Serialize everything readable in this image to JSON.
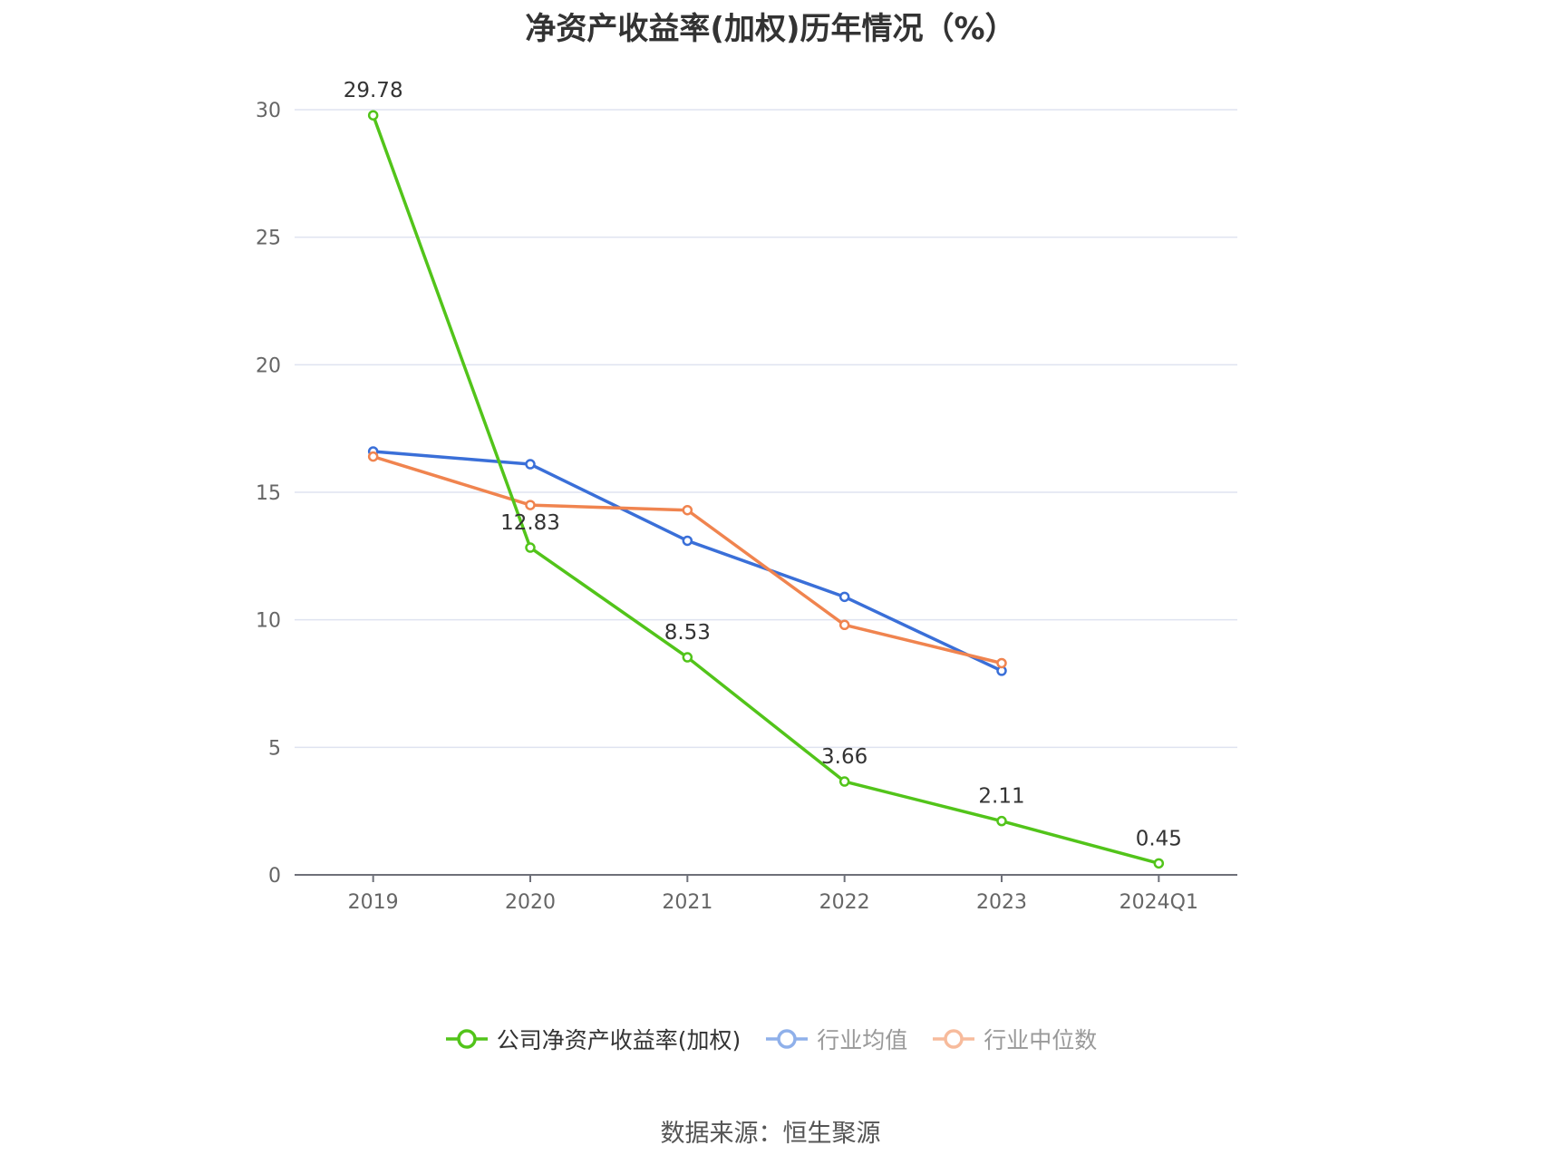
{
  "chart_data": {
    "type": "line",
    "title": "净资产收益率(加权)历年情况（%）",
    "categories": [
      "2019",
      "2020",
      "2021",
      "2022",
      "2023",
      "2024Q1"
    ],
    "series": [
      {
        "name": "公司净资产收益率(加权)",
        "color": "#52c41a",
        "values": [
          29.78,
          12.83,
          8.53,
          3.66,
          2.11,
          0.45
        ],
        "labels": [
          "29.78",
          "12.83",
          "8.53",
          "3.66",
          "2.11",
          "0.45"
        ]
      },
      {
        "name": "行业均值",
        "color": "#3a6fd8",
        "legend_color": "#8fb0ea",
        "values": [
          16.6,
          16.1,
          13.1,
          10.9,
          8.0,
          null
        ]
      },
      {
        "name": "行业中位数",
        "color": "#f0844f",
        "legend_color": "#f7bb9c",
        "values": [
          16.4,
          14.5,
          14.3,
          9.8,
          8.3,
          null
        ]
      }
    ],
    "yticks": [
      "0",
      "5",
      "10",
      "15",
      "20",
      "25",
      "30"
    ],
    "ylim": [
      0,
      30
    ],
    "grid": true,
    "legend_position": "bottom"
  },
  "source_note": "数据来源：恒生聚源"
}
